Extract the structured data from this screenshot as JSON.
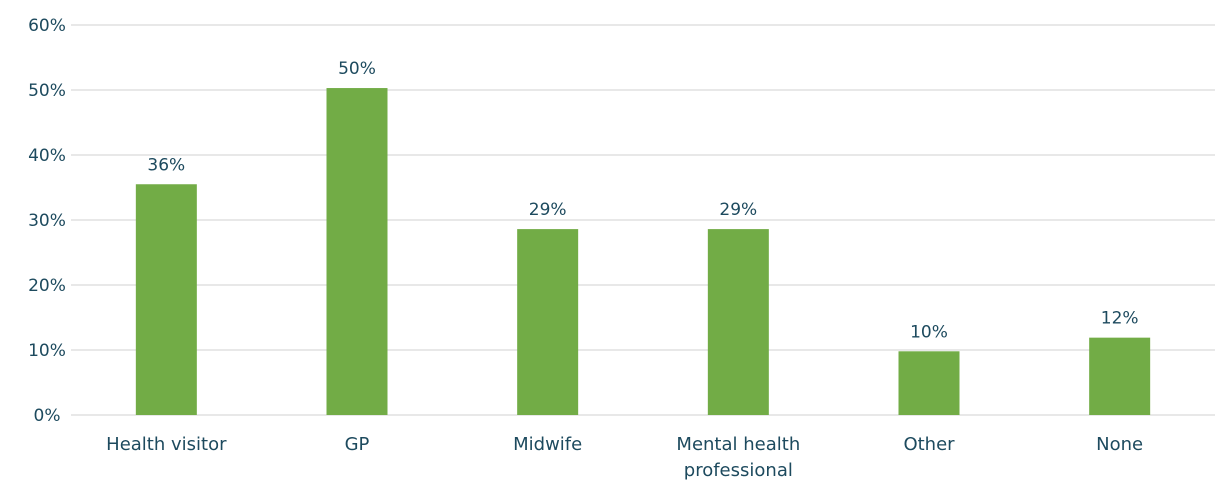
{
  "chart_data": {
    "type": "bar",
    "categories": [
      "Health visitor",
      "GP",
      "Midwife",
      "Mental health professional",
      "Other",
      "None"
    ],
    "values": [
      35.5,
      50.3,
      28.6,
      28.6,
      9.8,
      11.9
    ],
    "data_labels": [
      "36%",
      "50%",
      "29%",
      "29%",
      "10%",
      "12%"
    ],
    "y_ticks": [
      "0%",
      "10%",
      "20%",
      "30%",
      "40%",
      "50%",
      "60%"
    ],
    "ylim": [
      0,
      60
    ],
    "grid": true,
    "legend": "none",
    "title": "",
    "xlabel": "",
    "ylabel": "",
    "colors": {
      "bar": "#72ac46",
      "grid": "#d9d9d9",
      "text": "#1d4a5e"
    }
  }
}
